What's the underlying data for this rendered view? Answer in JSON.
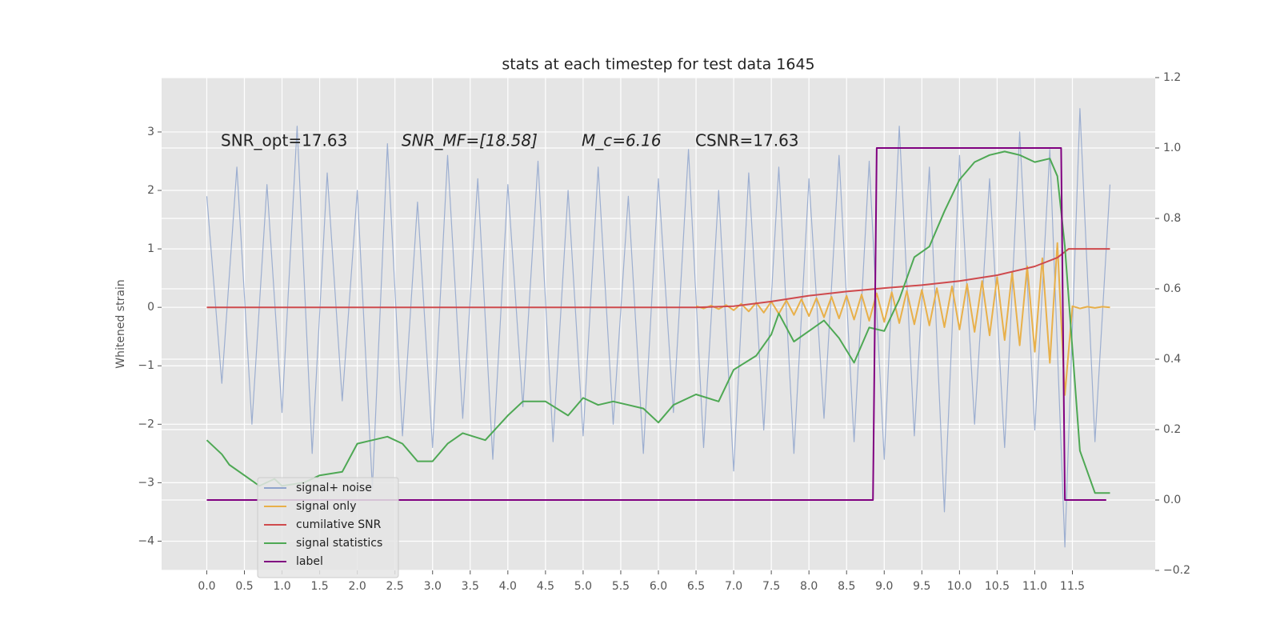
{
  "chart_data": {
    "type": "line",
    "title": "stats at each timestep for test data 1645",
    "ylabel": "Whitened strain",
    "annotations": [
      "SNR_opt=17.63",
      "SNR_MF=[18.58]",
      "M_c=6.16",
      "CSNR=17.63"
    ],
    "xlim": [
      -0.6,
      12.6
    ],
    "ylim": [
      -4.5,
      3.93
    ],
    "y2lim": [
      -0.2,
      1.2
    ],
    "xticks": [
      {
        "value": 0,
        "label": "0.0"
      },
      0.5,
      {
        "value": 1,
        "label": "1.0"
      },
      1.5,
      {
        "value": 2,
        "label": "2.0"
      },
      2.5,
      {
        "value": 3,
        "label": "3.0"
      },
      3.5,
      {
        "value": 4,
        "label": "4.0"
      },
      4.5,
      {
        "value": 5,
        "label": "5.0"
      },
      5.5,
      {
        "value": 6,
        "label": "6.0"
      },
      6.5,
      {
        "value": 7,
        "label": "7.0"
      },
      7.5,
      {
        "value": 8,
        "label": "8.0"
      },
      8.5,
      {
        "value": 9,
        "label": "9.0"
      },
      9.5,
      {
        "value": 10,
        "label": "10.0"
      },
      10.5,
      {
        "value": 11,
        "label": "11.0"
      },
      11.5
    ],
    "yticks": [
      {
        "value": -4,
        "label": "−4"
      },
      {
        "value": -3,
        "label": "−3"
      },
      {
        "value": -2,
        "label": "−2"
      },
      {
        "value": -1,
        "label": "−1"
      },
      0,
      1,
      2,
      3
    ],
    "y2ticks": [
      {
        "value": -0.2,
        "label": "−0.2"
      },
      {
        "value": 0,
        "label": "0.0"
      },
      0.2,
      0.4,
      0.6,
      0.8,
      {
        "value": 1,
        "label": "1.0"
      },
      1.2
    ],
    "grid": true,
    "legend_loc": "lower left",
    "series": [
      {
        "name": "signal+ noise",
        "color": "#8fa4cc",
        "x": [
          0,
          0.2,
          0.4,
          0.6,
          0.8,
          1,
          1.2,
          1.4,
          1.6,
          1.8,
          2,
          2.2,
          2.4,
          2.6,
          2.8,
          3,
          3.2,
          3.4,
          3.6,
          3.8,
          4,
          4.2,
          4.4,
          4.6,
          4.8,
          5,
          5.2,
          5.4,
          5.6,
          5.8,
          6,
          6.2,
          6.4,
          6.6,
          6.8,
          7,
          7.2,
          7.4,
          7.6,
          7.8,
          8,
          8.2,
          8.4,
          8.6,
          8.8,
          9,
          9.2,
          9.4,
          9.6,
          9.8,
          10,
          10.2,
          10.4,
          10.6,
          10.8,
          11,
          11.2,
          11.4,
          11.6,
          11.8,
          12
        ],
        "values": [
          1.9,
          -1.3,
          2.4,
          -2.0,
          2.1,
          -1.8,
          3.1,
          -2.5,
          2.3,
          -1.6,
          2.0,
          -3.1,
          2.8,
          -2.2,
          1.8,
          -2.4,
          2.6,
          -1.9,
          2.2,
          -2.6,
          2.1,
          -1.7,
          2.5,
          -2.3,
          2.0,
          -2.2,
          2.4,
          -2.0,
          1.9,
          -2.5,
          2.2,
          -1.8,
          2.7,
          -2.4,
          2.0,
          -2.8,
          2.3,
          -2.1,
          2.4,
          -2.5,
          2.2,
          -1.9,
          2.6,
          -2.3,
          2.5,
          -2.6,
          3.1,
          -2.2,
          2.4,
          -3.5,
          2.6,
          -2.0,
          2.2,
          -2.4,
          3.0,
          -2.1,
          2.7,
          -4.1,
          3.4,
          -2.3,
          2.1
        ]
      },
      {
        "name": "signal only",
        "color": "#e8b04a",
        "x": [
          6.5,
          6.6,
          6.7,
          6.8,
          6.9,
          7,
          7.1,
          7.2,
          7.3,
          7.4,
          7.5,
          7.6,
          7.7,
          7.8,
          7.9,
          8,
          8.1,
          8.2,
          8.3,
          8.4,
          8.5,
          8.6,
          8.7,
          8.8,
          8.9,
          9,
          9.1,
          9.2,
          9.3,
          9.4,
          9.5,
          9.6,
          9.7,
          9.8,
          9.9,
          10,
          10.1,
          10.2,
          10.3,
          10.4,
          10.5,
          10.6,
          10.7,
          10.8,
          10.9,
          11,
          11.1,
          11.2,
          11.3,
          11.4,
          11.5,
          11.6,
          11.7,
          11.8,
          11.9,
          12
        ],
        "values": [
          0.02,
          -0.02,
          0.03,
          -0.03,
          0.04,
          -0.05,
          0.06,
          -0.07,
          0.08,
          -0.09,
          0.1,
          -0.11,
          0.12,
          -0.13,
          0.14,
          -0.15,
          0.16,
          -0.17,
          0.18,
          -0.19,
          0.2,
          -0.21,
          0.22,
          -0.23,
          0.24,
          -0.25,
          0.26,
          -0.27,
          0.28,
          -0.29,
          0.3,
          -0.31,
          0.33,
          -0.34,
          0.36,
          -0.38,
          0.4,
          -0.42,
          0.45,
          -0.48,
          0.52,
          -0.56,
          0.6,
          -0.65,
          0.7,
          -0.76,
          0.84,
          -0.95,
          1.1,
          -1.5,
          0.02,
          -0.02,
          0.01,
          -0.01,
          0.01,
          0
        ]
      },
      {
        "name": "cumilative SNR",
        "color": "#cf4a4d",
        "x": [
          0,
          6.5,
          7,
          7.5,
          8,
          8.5,
          9,
          9.5,
          10,
          10.5,
          11,
          11.3,
          11.45,
          12
        ],
        "values": [
          0,
          0,
          0.02,
          0.1,
          0.2,
          0.27,
          0.33,
          0.38,
          0.45,
          0.55,
          0.7,
          0.85,
          1,
          1
        ]
      },
      {
        "name": "signal statistics",
        "color": "#4ea854",
        "axis": "y2",
        "x": [
          0,
          0.2,
          0.3,
          0.5,
          0.7,
          0.9,
          1,
          1.3,
          1.5,
          1.8,
          2,
          2.2,
          2.4,
          2.6,
          2.8,
          3,
          3.2,
          3.4,
          3.7,
          4,
          4.2,
          4.5,
          4.8,
          5,
          5.2,
          5.4,
          5.6,
          5.8,
          6,
          6.2,
          6.5,
          6.8,
          7,
          7.3,
          7.5,
          7.6,
          7.8,
          8,
          8.2,
          8.4,
          8.6,
          8.8,
          9,
          9.2,
          9.4,
          9.6,
          9.8,
          10,
          10.2,
          10.4,
          10.6,
          10.8,
          11,
          11.2,
          11.3,
          11.4,
          11.6,
          11.8,
          12
        ],
        "values": [
          0.17,
          0.13,
          0.1,
          0.07,
          0.04,
          0.06,
          0.04,
          0.05,
          0.07,
          0.08,
          0.16,
          0.17,
          0.18,
          0.16,
          0.11,
          0.11,
          0.16,
          0.19,
          0.17,
          0.24,
          0.28,
          0.28,
          0.24,
          0.29,
          0.27,
          0.28,
          0.27,
          0.26,
          0.22,
          0.27,
          0.3,
          0.28,
          0.37,
          0.41,
          0.47,
          0.53,
          0.45,
          0.48,
          0.51,
          0.46,
          0.39,
          0.49,
          0.48,
          0.57,
          0.69,
          0.72,
          0.82,
          0.91,
          0.96,
          0.98,
          0.99,
          0.98,
          0.96,
          0.97,
          0.92,
          0.72,
          0.14,
          0.02,
          0.02
        ]
      },
      {
        "name": "label",
        "color": "#800080",
        "axis": "y2",
        "x": [
          0,
          8.85,
          8.9,
          11.35,
          11.4,
          11.95
        ],
        "values": [
          0,
          0,
          1,
          1,
          0,
          0
        ]
      }
    ]
  }
}
